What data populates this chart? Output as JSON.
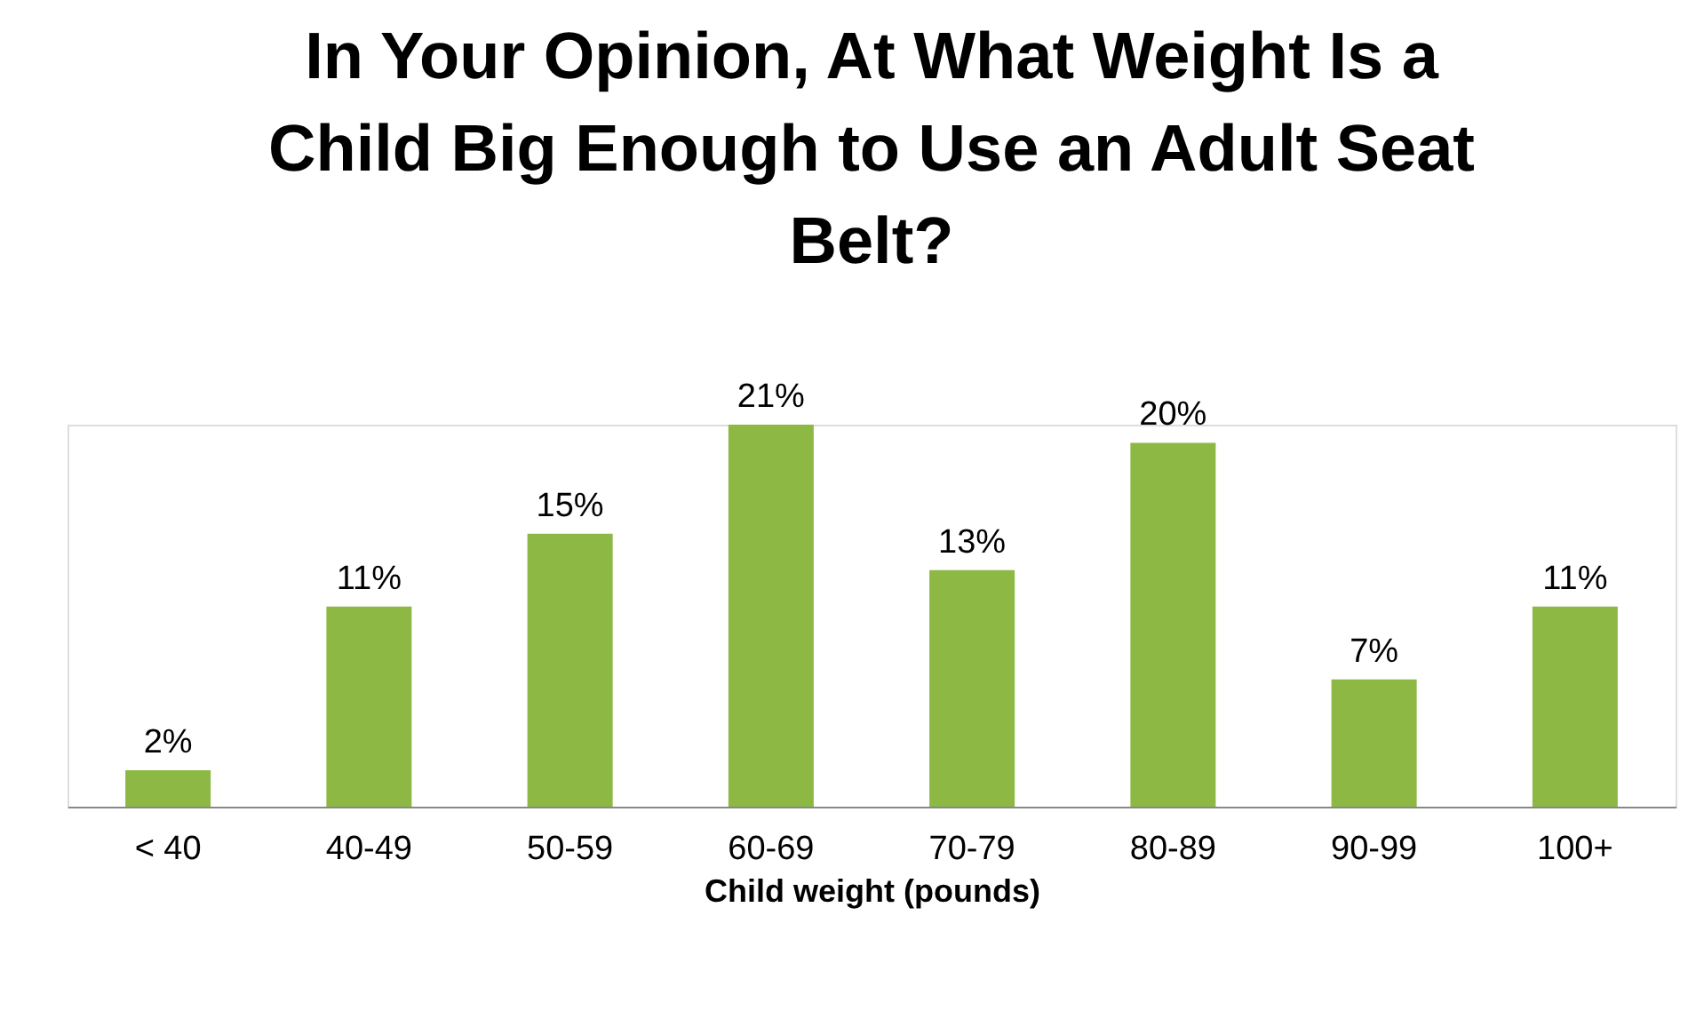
{
  "chart_data": {
    "type": "bar",
    "title": "In Your Opinion, At What Weight Is a Child Big Enough to Use an Adult Seat Belt?",
    "xlabel": "Child weight (pounds)",
    "categories": [
      "< 40",
      "40-49",
      "50-59",
      "60-69",
      "70-79",
      "80-89",
      "90-99",
      "100+"
    ],
    "values": [
      2,
      11,
      15,
      21,
      13,
      20,
      7,
      11
    ],
    "value_labels": [
      "2%",
      "11%",
      "15%",
      "21%",
      "13%",
      "20%",
      "7%",
      "11%"
    ],
    "color": "#8cb843"
  }
}
